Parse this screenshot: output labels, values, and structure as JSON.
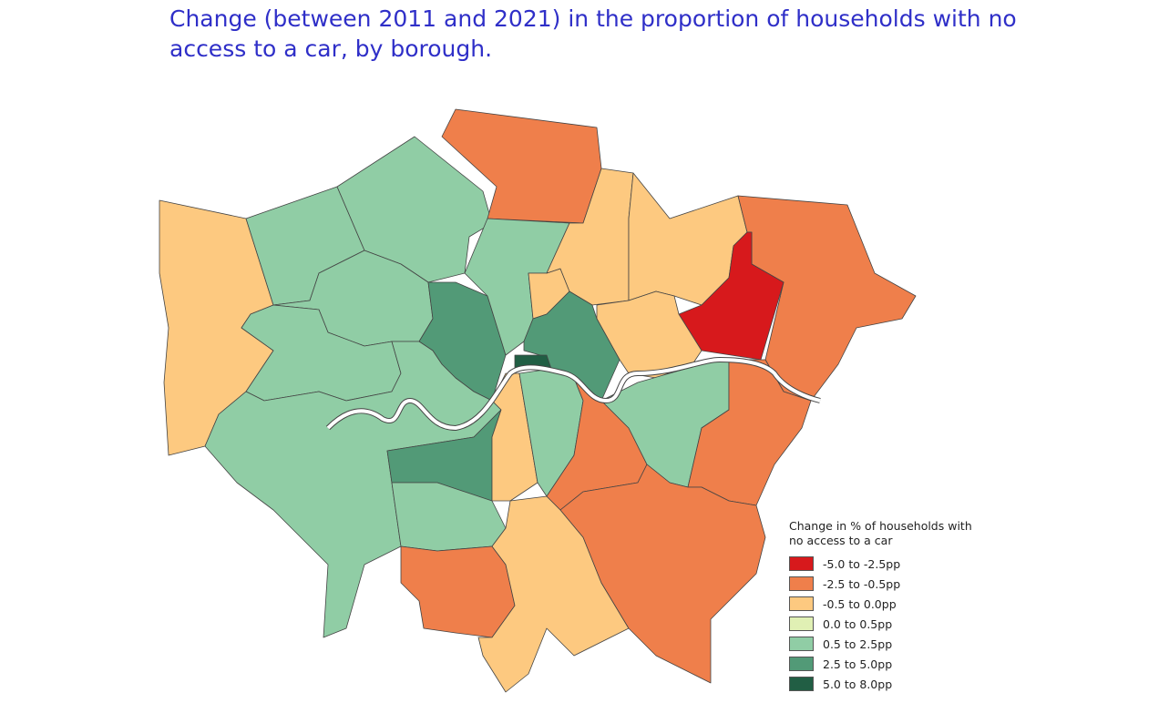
{
  "title": "Change (between 2011 and 2021) in the proportion of households with no access to a car, by borough.",
  "legend": {
    "title": "Change in % of households with no access to a car",
    "items": [
      {
        "label": "-5.0 to -2.5pp",
        "color": "#d7191c"
      },
      {
        "label": "-2.5 to -0.5pp",
        "color": "#ef7f4b"
      },
      {
        "label": "-0.5 to 0.0pp",
        "color": "#fdc980"
      },
      {
        "label": "0.0 to 0.5pp",
        "color": "#e0f0b4"
      },
      {
        "label": "0.5 to 2.5pp",
        "color": "#90cda5"
      },
      {
        "label": "2.5 to 5.0pp",
        "color": "#529a77"
      },
      {
        "label": "5.0 to 8.0pp",
        "color": "#215e44"
      }
    ]
  }
}
